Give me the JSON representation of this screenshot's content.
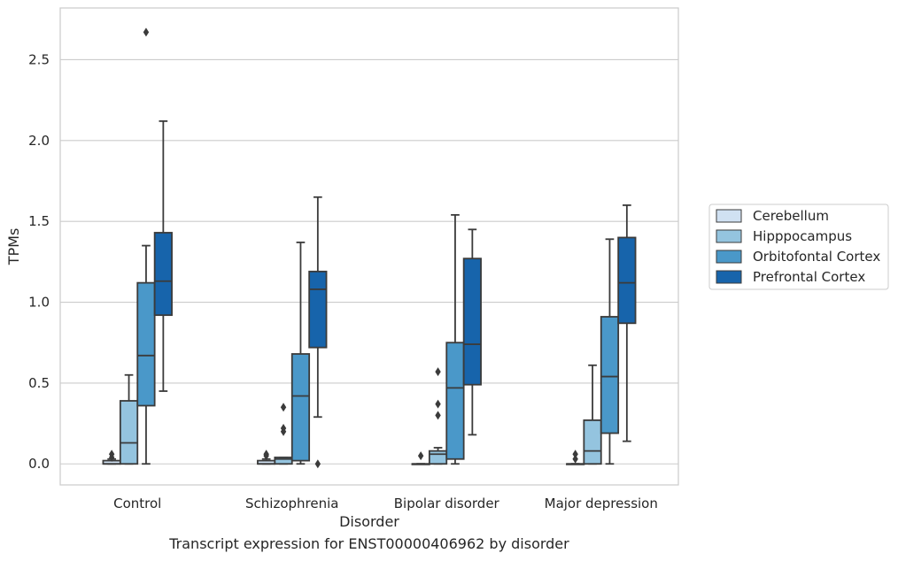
{
  "chart_data": {
    "type": "box",
    "caption": "Transcript expression for ENST00000406962 by disorder",
    "xlabel": "Disorder",
    "ylabel": "TPMs",
    "ylim": [
      -0.13,
      2.82
    ],
    "yticks": [
      0.0,
      0.5,
      1.0,
      1.5,
      2.0,
      2.5
    ],
    "ytick_labels": [
      "0.0",
      "0.5",
      "1.0",
      "1.5",
      "2.0",
      "2.5"
    ],
    "grid": "horizontal",
    "legend_position": "right",
    "categories": [
      "Control",
      "Schizophrenia",
      "Bipolar disorder",
      "Major depression"
    ],
    "series": [
      {
        "name": "Cerebellum",
        "color": "#d0e1f2",
        "boxes": [
          {
            "whisker_low": 0.0,
            "q1": 0.0,
            "median": 0.0,
            "q3": 0.02,
            "whisker_high": 0.03,
            "outliers": [
              0.04,
              0.06
            ]
          },
          {
            "whisker_low": 0.0,
            "q1": 0.0,
            "median": 0.0,
            "q3": 0.02,
            "whisker_high": 0.03,
            "outliers": [
              0.05,
              0.06
            ]
          },
          {
            "whisker_low": 0.0,
            "q1": 0.0,
            "median": 0.0,
            "q3": 0.0,
            "whisker_high": 0.0,
            "outliers": [
              0.05
            ]
          },
          {
            "whisker_low": 0.0,
            "q1": 0.0,
            "median": 0.0,
            "q3": 0.0,
            "whisker_high": 0.0,
            "outliers": [
              0.03,
              0.06
            ]
          }
        ]
      },
      {
        "name": "Hipppocampus",
        "color": "#94c4df",
        "boxes": [
          {
            "whisker_low": 0.0,
            "q1": 0.0,
            "median": 0.13,
            "q3": 0.39,
            "whisker_high": 0.55,
            "outliers": []
          },
          {
            "whisker_low": 0.0,
            "q1": 0.0,
            "median": 0.03,
            "q3": 0.04,
            "whisker_high": 0.04,
            "outliers": [
              0.2,
              0.22,
              0.35
            ]
          },
          {
            "whisker_low": 0.0,
            "q1": 0.0,
            "median": 0.06,
            "q3": 0.08,
            "whisker_high": 0.1,
            "outliers": [
              0.3,
              0.37,
              0.57
            ]
          },
          {
            "whisker_low": 0.0,
            "q1": 0.0,
            "median": 0.08,
            "q3": 0.27,
            "whisker_high": 0.61,
            "outliers": []
          }
        ]
      },
      {
        "name": "Orbitofontal Cortex",
        "color": "#4a98c9",
        "boxes": [
          {
            "whisker_low": 0.0,
            "q1": 0.36,
            "median": 0.67,
            "q3": 1.12,
            "whisker_high": 1.35,
            "outliers": [
              2.67
            ]
          },
          {
            "whisker_low": 0.0,
            "q1": 0.02,
            "median": 0.42,
            "q3": 0.68,
            "whisker_high": 1.37,
            "outliers": []
          },
          {
            "whisker_low": 0.0,
            "q1": 0.03,
            "median": 0.47,
            "q3": 0.75,
            "whisker_high": 1.54,
            "outliers": []
          },
          {
            "whisker_low": 0.0,
            "q1": 0.19,
            "median": 0.54,
            "q3": 0.91,
            "whisker_high": 1.39,
            "outliers": []
          }
        ]
      },
      {
        "name": "Prefrontal Cortex",
        "color": "#1764ab",
        "boxes": [
          {
            "whisker_low": 0.45,
            "q1": 0.92,
            "median": 1.13,
            "q3": 1.43,
            "whisker_high": 2.12,
            "outliers": []
          },
          {
            "whisker_low": 0.29,
            "q1": 0.72,
            "median": 1.08,
            "q3": 1.19,
            "whisker_high": 1.65,
            "outliers": [
              0.0
            ]
          },
          {
            "whisker_low": 0.18,
            "q1": 0.49,
            "median": 0.74,
            "q3": 1.27,
            "whisker_high": 1.45,
            "outliers": []
          },
          {
            "whisker_low": 0.14,
            "q1": 0.87,
            "median": 1.12,
            "q3": 1.4,
            "whisker_high": 1.6,
            "outliers": []
          }
        ]
      }
    ]
  }
}
